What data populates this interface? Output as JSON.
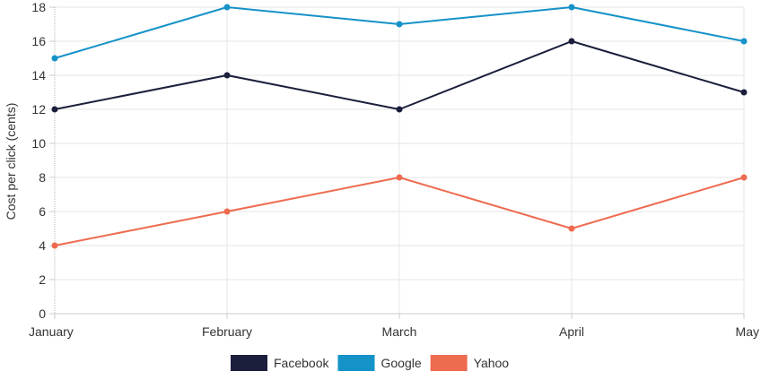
{
  "chart_data": {
    "type": "line",
    "categories": [
      "January",
      "February",
      "March",
      "April",
      "May"
    ],
    "ylabel": "Cost per click (cents)",
    "ylim": [
      0,
      18
    ],
    "yticks": [
      0,
      2,
      4,
      6,
      8,
      10,
      12,
      14,
      16,
      18
    ],
    "grid": true,
    "legend_position": "bottom",
    "series": [
      {
        "name": "Facebook",
        "color": "#1b1f3b",
        "values": [
          12,
          14,
          12,
          16,
          13
        ]
      },
      {
        "name": "Google",
        "color": "#1592c8",
        "values": [
          15,
          18,
          17,
          18,
          16
        ]
      },
      {
        "name": "Yahoo",
        "color": "#ee6b50",
        "values": [
          4,
          6,
          8,
          5,
          8
        ]
      }
    ]
  }
}
